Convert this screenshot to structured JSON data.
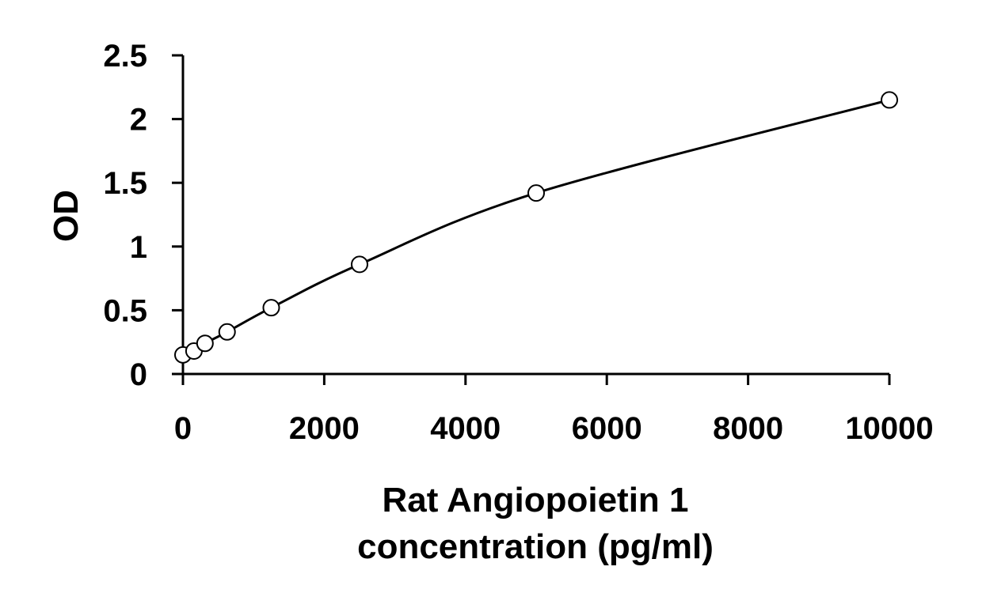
{
  "chart_data": {
    "type": "scatter",
    "title": "",
    "ylabel": "OD",
    "xlabel_lines": [
      "Rat Angiopoietin 1",
      "concentration (pg/ml)"
    ],
    "xlim": [
      0,
      10000
    ],
    "ylim": [
      0,
      2.5
    ],
    "x_ticks": [
      "0",
      "2000",
      "4000",
      "6000",
      "8000",
      "10000"
    ],
    "y_ticks": [
      "0",
      "0.5",
      "1",
      "1.5",
      "2",
      "2.5"
    ],
    "grid": false,
    "series": [
      {
        "x": [
          0,
          156,
          312,
          625,
          1250,
          2500,
          5000,
          10000
        ],
        "y": [
          0.15,
          0.18,
          0.24,
          0.33,
          0.52,
          0.86,
          1.42,
          2.15
        ]
      }
    ],
    "fit_curve": "smooth curve through points",
    "colors": {
      "axis": "#000000",
      "marker_stroke": "#000000",
      "marker_fill": "#ffffff",
      "curve": "#000000"
    }
  }
}
